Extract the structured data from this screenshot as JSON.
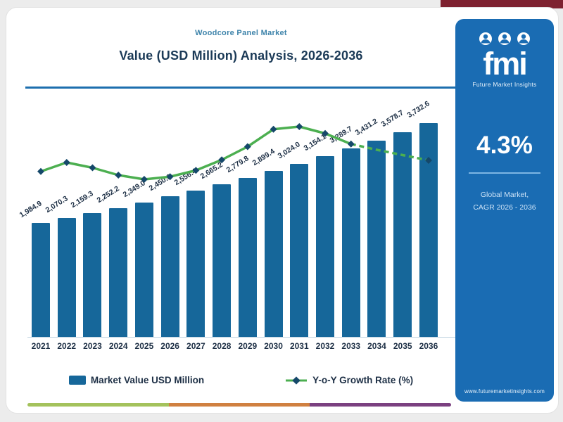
{
  "header": {
    "eyebrow": "Woodcore Panel Market",
    "title": "Value (USD Million) Analysis, 2026-2036"
  },
  "chart_data": {
    "type": "bar",
    "title": "Value (USD Million) Analysis, 2026-2036",
    "categories": [
      "2021",
      "2022",
      "2023",
      "2024",
      "2025",
      "2026",
      "2027",
      "2028",
      "2029",
      "2030",
      "2031",
      "2032",
      "2033",
      "2034",
      "2035",
      "2036"
    ],
    "series": [
      {
        "name": "Market Value USD Million",
        "type": "bar",
        "values": [
          1984.9,
          2070.3,
          2159.3,
          2252.2,
          2349.0,
          2450.0,
          2556.4,
          2665.2,
          2779.8,
          2899.4,
          3024.0,
          3154.1,
          3289.7,
          3431.2,
          3578.7,
          3732.6
        ],
        "labels": [
          "1,984.9",
          "2,070.3",
          "2,159.3",
          "2,252.2",
          "2,349.0",
          "2,450.0",
          "2,556.4",
          "2,665.2",
          "2,779.8",
          "2,899.4",
          "3,024.0",
          "3,154.1",
          "3,289.7",
          "3,431.2",
          "3,578.7",
          "3,732.6"
        ],
        "color": "#16679a"
      },
      {
        "name": "Y-o-Y Growth Rate (%)",
        "type": "line",
        "values_estimated_pct": [
          4.15,
          4.32,
          4.22,
          4.08,
          4.0,
          4.05,
          4.17,
          4.37,
          4.62,
          4.95,
          5.0,
          4.87,
          4.67,
          4.56,
          4.46,
          4.36
        ],
        "note": "line has no printed data labels; percentages estimated from plotted positions",
        "color": "#4caf50",
        "marker_color": "#15486a",
        "dashed_from_index": 12
      }
    ],
    "xlabel": "",
    "ylabel": "",
    "y_axis_visible": false,
    "grid": false,
    "legend_position": "bottom"
  },
  "sidebar": {
    "logo_text": "fmi",
    "logo_subtext": "Future Market Insights",
    "cagr_value": "4.3%",
    "cagr_label_line1": "Global Market,",
    "cagr_label_line2": "CAGR 2026 - 2036",
    "website": "www.futuremarketinsights.com",
    "bg_color": "#1a6cb3"
  },
  "footer": {
    "stripe_colors": [
      "#a4c25c",
      "#d08040",
      "#7b4080"
    ]
  },
  "accent_colors": {
    "header_divider": "#1d6fae",
    "eyebrow_text": "#3d83aa",
    "title_text": "#1b3a57",
    "top_accent": "#7e2230"
  }
}
